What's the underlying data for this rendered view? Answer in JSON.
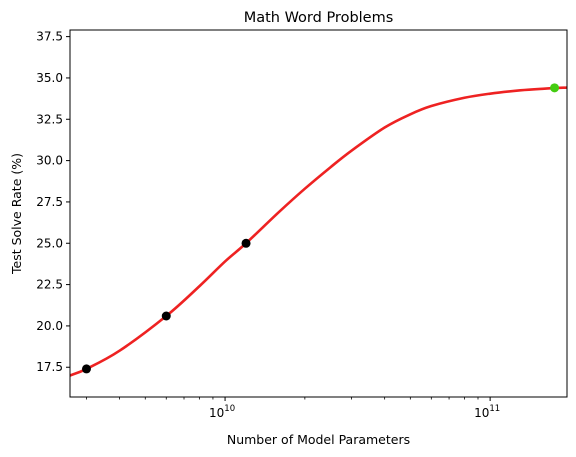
{
  "chart_data": {
    "type": "scatter",
    "title": "Math Word Problems",
    "xlabel": "Number of Model Parameters",
    "ylabel": "Test Solve Rate (%)",
    "x_scale": "log",
    "xlim": [
      2600000000.0,
      195000000000.0
    ],
    "ylim": [
      15.7,
      37.9
    ],
    "y_ticks": [
      "17.5",
      "20.0",
      "22.5",
      "25.0",
      "27.5",
      "30.0",
      "32.5",
      "35.0",
      "37.5"
    ],
    "x_ticks": [
      {
        "base": "10",
        "exp": "10",
        "value": 10000000000.0
      },
      {
        "base": "10",
        "exp": "11",
        "value": 100000000000.0
      }
    ],
    "grid": false,
    "legend": "none",
    "series": [
      {
        "points": [
          {
            "x": 3000000000.0,
            "y": 17.4
          },
          {
            "x": 6000000000.0,
            "y": 20.6
          },
          {
            "x": 12000000000.0,
            "y": 25.0
          }
        ],
        "color": "#000000"
      },
      {
        "points": [
          {
            "x": 175000000000.0,
            "y": 34.4
          }
        ],
        "color": "#44cc11"
      }
    ],
    "fit_curve": {
      "color": "#ee2222",
      "points": [
        {
          "x": 2600000000.0,
          "y": 17.0
        },
        {
          "x": 3000000000.0,
          "y": 17.4
        },
        {
          "x": 4000000000.0,
          "y": 18.5
        },
        {
          "x": 6000000000.0,
          "y": 20.6
        },
        {
          "x": 8000000000.0,
          "y": 22.4
        },
        {
          "x": 10000000000.0,
          "y": 23.9
        },
        {
          "x": 12000000000.0,
          "y": 25.0
        },
        {
          "x": 16000000000.0,
          "y": 26.9
        },
        {
          "x": 20000000000.0,
          "y": 28.3
        },
        {
          "x": 25000000000.0,
          "y": 29.6
        },
        {
          "x": 30000000000.0,
          "y": 30.6
        },
        {
          "x": 40000000000.0,
          "y": 32.0
        },
        {
          "x": 50000000000.0,
          "y": 32.8
        },
        {
          "x": 60000000000.0,
          "y": 33.3
        },
        {
          "x": 80000000000.0,
          "y": 33.8
        },
        {
          "x": 100000000000.0,
          "y": 34.05
        },
        {
          "x": 130000000000.0,
          "y": 34.25
        },
        {
          "x": 160000000000.0,
          "y": 34.35
        },
        {
          "x": 195000000000.0,
          "y": 34.42
        }
      ]
    }
  }
}
